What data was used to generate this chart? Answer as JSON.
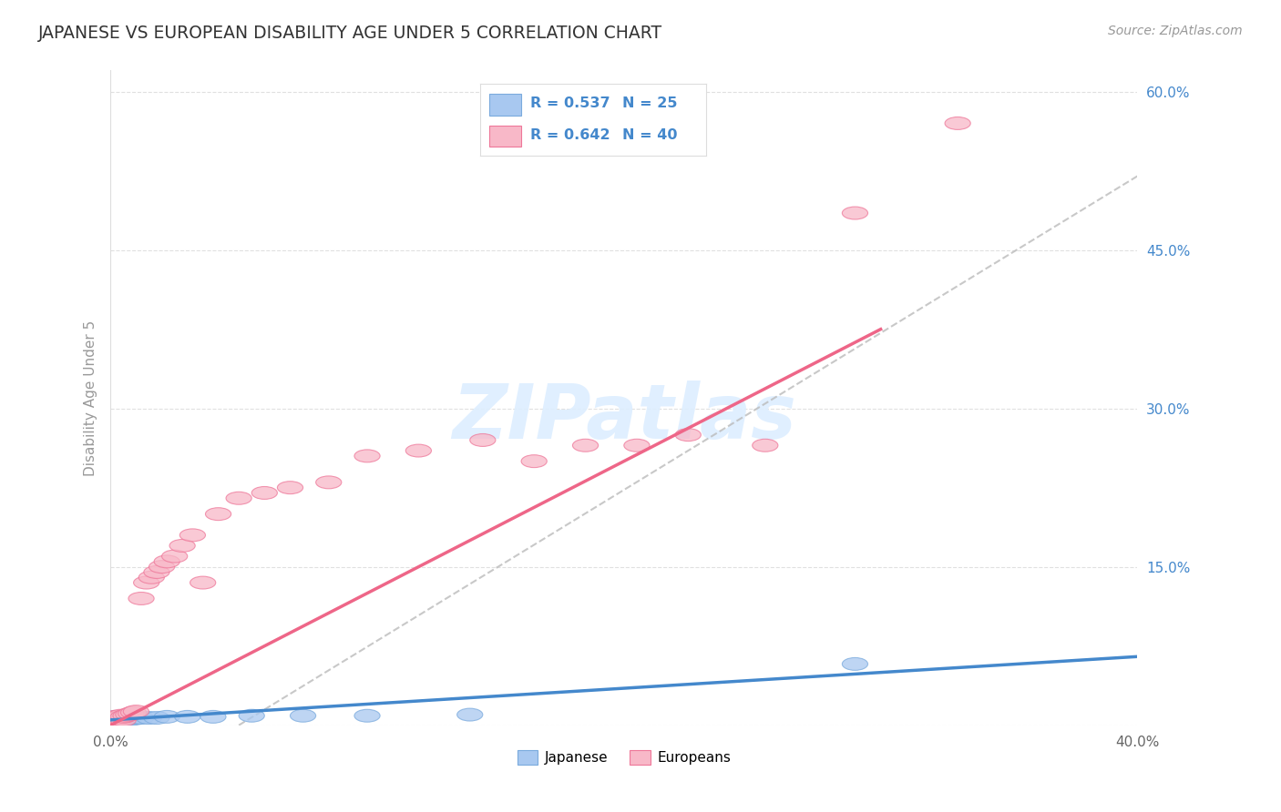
{
  "title": "JAPANESE VS EUROPEAN DISABILITY AGE UNDER 5 CORRELATION CHART",
  "source": "Source: ZipAtlas.com",
  "ylabel": "Disability Age Under 5",
  "xlim": [
    0.0,
    0.4
  ],
  "ylim": [
    0.0,
    0.62
  ],
  "yticks": [
    0.0,
    0.15,
    0.3,
    0.45,
    0.6
  ],
  "xtick_labels_bottom": [
    "0.0%",
    "40.0%"
  ],
  "grid_color": "#cccccc",
  "background_color": "#ffffff",
  "title_color": "#333333",
  "source_color": "#999999",
  "japanese_fill": "#a8c8f0",
  "japanese_edge": "#7aaadd",
  "european_fill": "#f8b8c8",
  "european_edge": "#ee7799",
  "japanese_line_color": "#4488cc",
  "european_line_color": "#ee6688",
  "dashed_line_color": "#bbbbbb",
  "legend_R_color": "#4488cc",
  "legend_N_color": "#4488cc",
  "ytick_color": "#4488cc",
  "legend_R_japanese": "R = 0.537",
  "legend_N_japanese": "N = 25",
  "legend_R_european": "R = 0.642",
  "legend_N_european": "N = 40",
  "watermark_text": "ZIPatlas",
  "watermark_color": "#ddeeff",
  "japanese_x": [
    0.001,
    0.001,
    0.002,
    0.002,
    0.003,
    0.003,
    0.004,
    0.005,
    0.005,
    0.006,
    0.007,
    0.008,
    0.009,
    0.01,
    0.012,
    0.015,
    0.018,
    0.022,
    0.03,
    0.04,
    0.055,
    0.075,
    0.1,
    0.14,
    0.29
  ],
  "japanese_y": [
    0.004,
    0.007,
    0.005,
    0.008,
    0.004,
    0.007,
    0.006,
    0.005,
    0.007,
    0.006,
    0.006,
    0.007,
    0.006,
    0.007,
    0.007,
    0.007,
    0.007,
    0.008,
    0.008,
    0.008,
    0.009,
    0.009,
    0.009,
    0.01,
    0.058
  ],
  "european_x": [
    0.001,
    0.001,
    0.002,
    0.002,
    0.003,
    0.003,
    0.004,
    0.004,
    0.005,
    0.005,
    0.006,
    0.007,
    0.008,
    0.009,
    0.01,
    0.012,
    0.014,
    0.016,
    0.018,
    0.02,
    0.022,
    0.025,
    0.028,
    0.032,
    0.036,
    0.042,
    0.05,
    0.06,
    0.07,
    0.085,
    0.1,
    0.12,
    0.145,
    0.165,
    0.185,
    0.205,
    0.225,
    0.255,
    0.29,
    0.33
  ],
  "european_y": [
    0.004,
    0.007,
    0.005,
    0.008,
    0.004,
    0.007,
    0.006,
    0.009,
    0.005,
    0.008,
    0.009,
    0.01,
    0.011,
    0.012,
    0.013,
    0.12,
    0.135,
    0.14,
    0.145,
    0.15,
    0.155,
    0.16,
    0.17,
    0.18,
    0.135,
    0.2,
    0.215,
    0.22,
    0.225,
    0.23,
    0.255,
    0.26,
    0.27,
    0.25,
    0.265,
    0.265,
    0.275,
    0.265,
    0.485,
    0.57
  ]
}
